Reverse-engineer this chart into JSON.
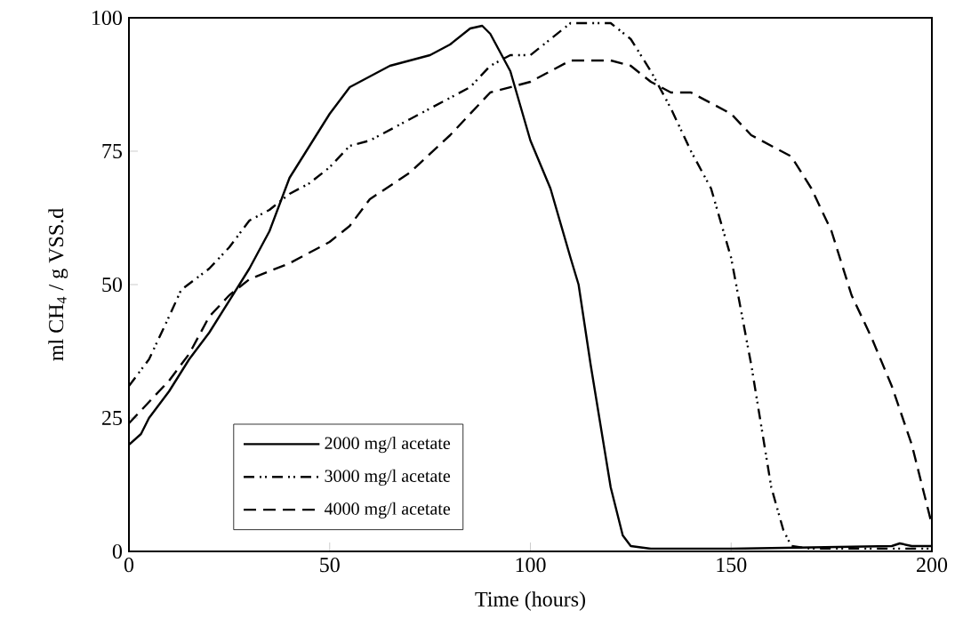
{
  "chart_data": {
    "type": "line",
    "xlabel": "Time (hours)",
    "ylabel": "ml CH$_{4}$ / g VSS.d",
    "xlim": [
      0,
      200
    ],
    "ylim": [
      0,
      100
    ],
    "xticks": [
      0,
      50,
      100,
      150,
      200
    ],
    "yticks": [
      0,
      25,
      50,
      75,
      100
    ],
    "grid": false,
    "legend": "bottom left",
    "marker": "none",
    "series": [
      {
        "name": "2000 mg/l acetate",
        "color": "#000000",
        "line_style": "solid",
        "x": [
          0,
          3,
          5,
          10,
          15,
          20,
          25,
          30,
          35,
          40,
          45,
          50,
          55,
          60,
          65,
          70,
          75,
          80,
          85,
          88,
          90,
          95,
          100,
          105,
          110,
          112,
          115,
          120,
          123,
          125,
          130,
          150,
          190,
          192,
          195,
          200
        ],
        "values": [
          20,
          22,
          25,
          30,
          36,
          41,
          47,
          53,
          60,
          70,
          76,
          82,
          87,
          89,
          91,
          92,
          93,
          95,
          98,
          98.5,
          97,
          90,
          77,
          68,
          55,
          50,
          35,
          12,
          3,
          1,
          0.5,
          0.5,
          1,
          1.5,
          1,
          1
        ]
      },
      {
        "name": "3000 mg/l acetate",
        "color": "#000000",
        "line_style": "dashdotdot",
        "x": [
          0,
          5,
          10,
          13,
          20,
          25,
          30,
          35,
          40,
          45,
          50,
          55,
          60,
          70,
          80,
          85,
          90,
          95,
          100,
          105,
          110,
          120,
          125,
          130,
          135,
          140,
          145,
          150,
          155,
          160,
          163,
          165,
          170,
          200
        ],
        "values": [
          31,
          36,
          44,
          49,
          53,
          57,
          62,
          64,
          67,
          69,
          72,
          76,
          77,
          81,
          85,
          87,
          91,
          93,
          93,
          96,
          99,
          99,
          96,
          90,
          83,
          75,
          68,
          55,
          35,
          12,
          4,
          1,
          0.5,
          0.5
        ]
      },
      {
        "name": "4000 mg/l acetate",
        "color": "#000000",
        "line_style": "dashed",
        "x": [
          0,
          5,
          10,
          15,
          20,
          25,
          30,
          40,
          50,
          55,
          60,
          70,
          80,
          90,
          100,
          105,
          110,
          120,
          125,
          130,
          135,
          140,
          145,
          150,
          155,
          160,
          165,
          170,
          175,
          180,
          185,
          190,
          195,
          200
        ],
        "values": [
          24,
          28,
          32,
          37,
          44,
          48,
          51,
          54,
          58,
          61,
          66,
          71,
          78,
          86,
          88,
          90,
          92,
          92,
          91,
          88,
          86,
          86,
          84,
          82,
          78,
          76,
          74,
          68,
          60,
          48,
          40,
          31,
          20,
          5
        ]
      }
    ]
  }
}
